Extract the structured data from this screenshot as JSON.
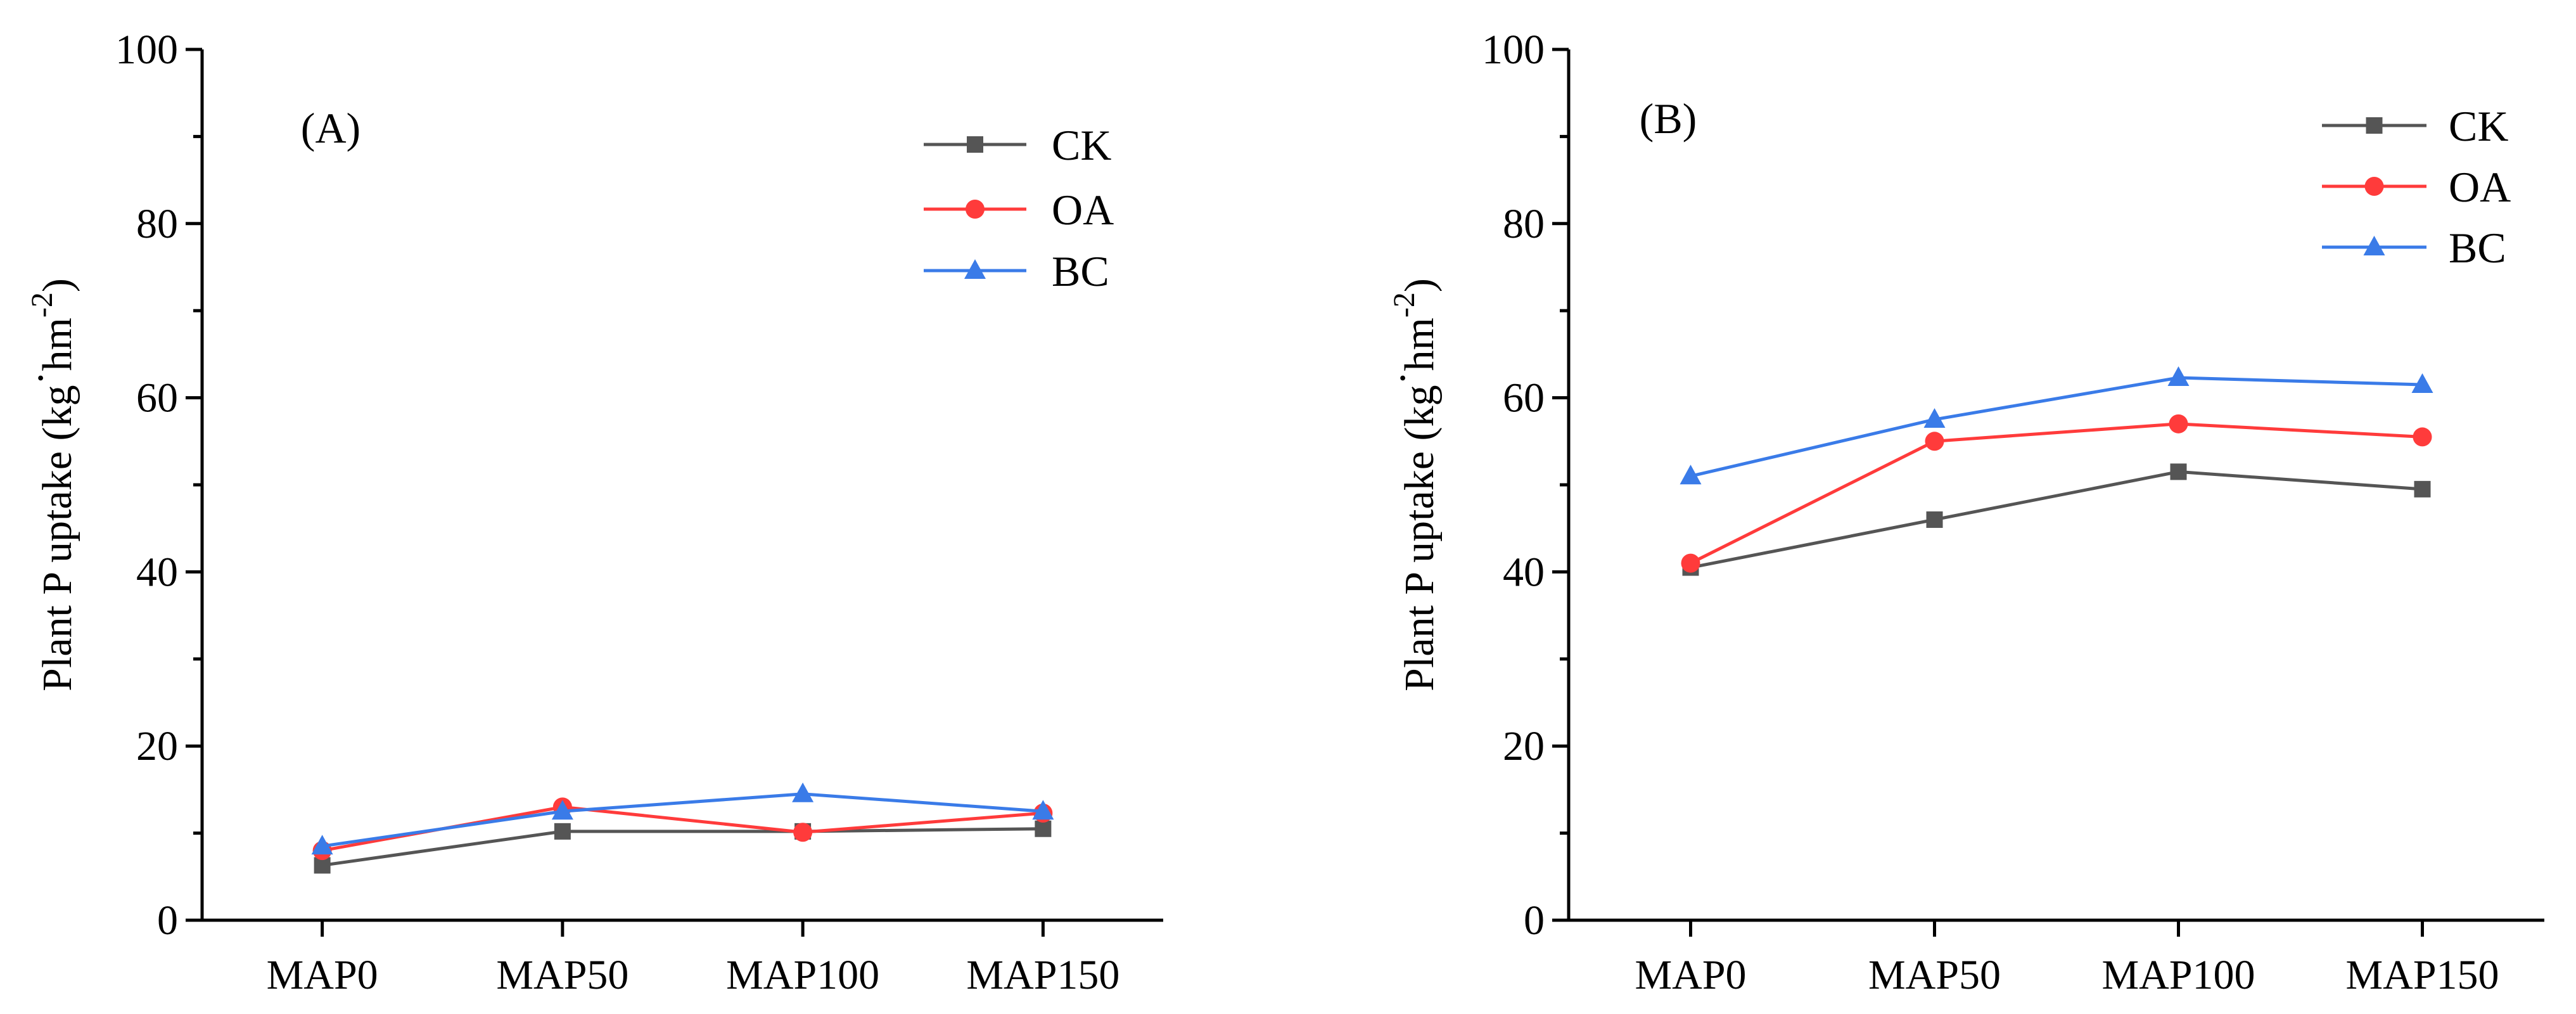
{
  "chart_data": [
    {
      "type": "line",
      "panel_label": "(A)",
      "ylabel_main": "Plant P uptake (kg",
      "ylabel_unit": "hm",
      "ylabel_exp": "-2",
      "ylabel_close": ")",
      "xlabel": "",
      "ylim": [
        0,
        100
      ],
      "yticks": [
        "0",
        "20",
        "40",
        "60",
        "80",
        "100"
      ],
      "categories": [
        "MAP0",
        "MAP50",
        "MAP100",
        "MAP150"
      ],
      "legend_position": "top-right",
      "series": [
        {
          "name": "CK",
          "color": "#555555",
          "marker": "square",
          "values": [
            6.3,
            10.2,
            10.2,
            10.5
          ]
        },
        {
          "name": "OA",
          "color": "#ff3b3b",
          "marker": "circle",
          "values": [
            8.0,
            13.0,
            10.1,
            12.3
          ]
        },
        {
          "name": "BC",
          "color": "#3a7be8",
          "marker": "triangle",
          "values": [
            8.5,
            12.5,
            14.5,
            12.5
          ]
        }
      ]
    },
    {
      "type": "line",
      "panel_label": "(B)",
      "ylabel_main": "Plant P uptake (kg",
      "ylabel_unit": "hm",
      "ylabel_exp": "-2",
      "ylabel_close": ")",
      "xlabel": "",
      "ylim": [
        0,
        100
      ],
      "yticks": [
        "0",
        "20",
        "40",
        "60",
        "80",
        "100"
      ],
      "categories": [
        "MAP0",
        "MAP50",
        "MAP100",
        "MAP150"
      ],
      "legend_position": "top-right",
      "series": [
        {
          "name": "CK",
          "color": "#555555",
          "marker": "square",
          "values": [
            40.5,
            46.0,
            51.5,
            49.5
          ]
        },
        {
          "name": "OA",
          "color": "#ff3b3b",
          "marker": "circle",
          "values": [
            41.0,
            55.0,
            57.0,
            55.5
          ]
        },
        {
          "name": "BC",
          "color": "#3a7be8",
          "marker": "triangle",
          "values": [
            51.0,
            57.5,
            62.3,
            61.5
          ]
        }
      ]
    }
  ]
}
